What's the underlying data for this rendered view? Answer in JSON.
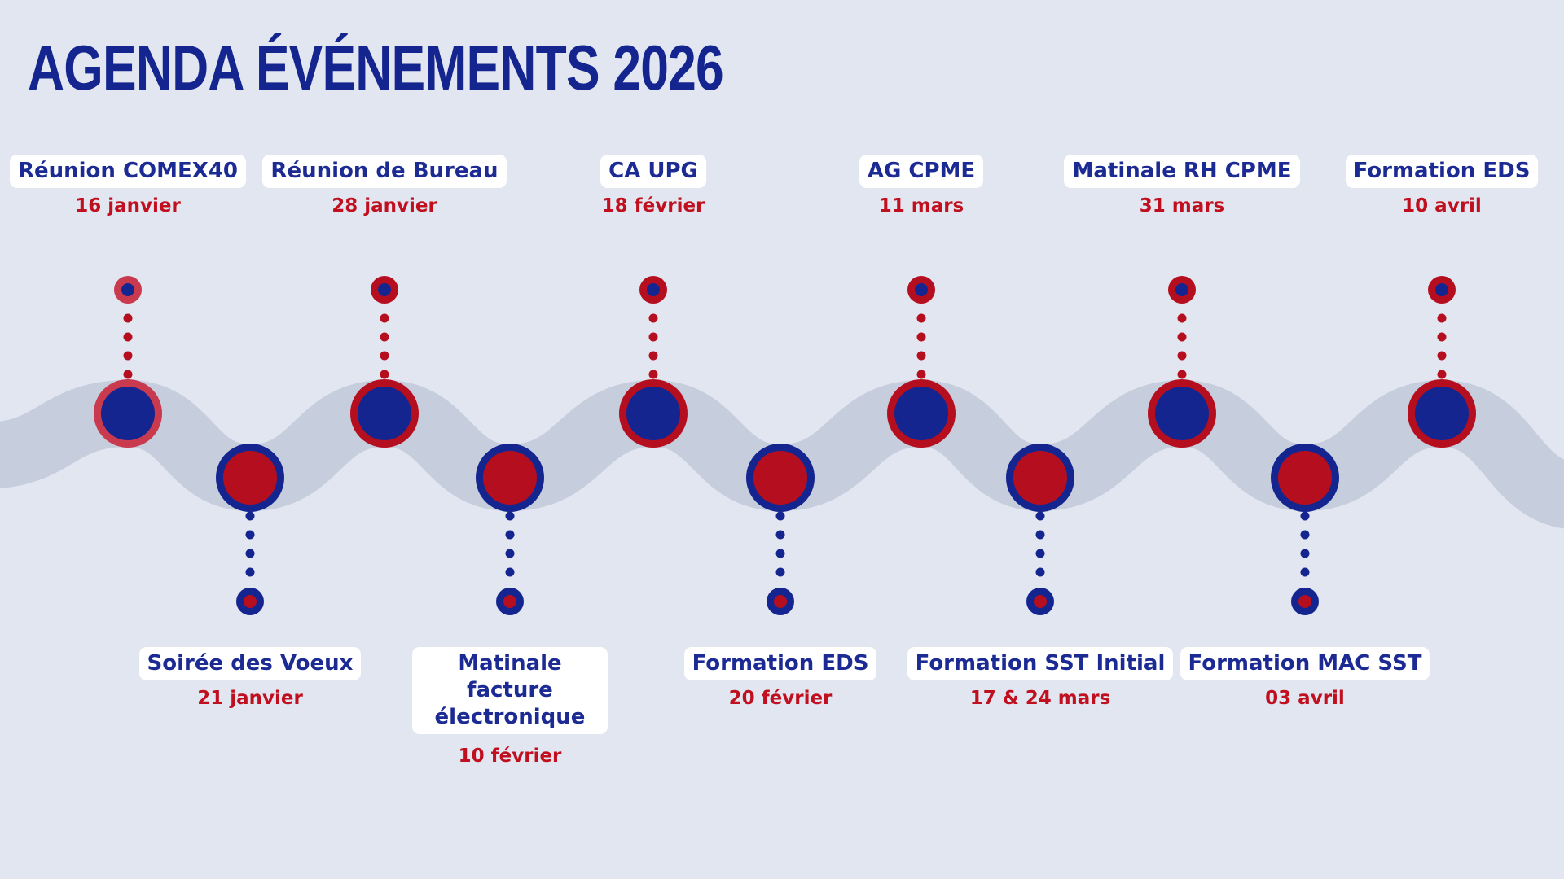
{
  "title": "AGENDA ÉVÉNEMENTS 2026",
  "colors": {
    "navy": "#15258f",
    "red": "#b50f1f",
    "band": "#c6cddd",
    "background": "#e2e6f0"
  },
  "events": [
    {
      "label": "Réunion COMEX40",
      "date": "16 janvier"
    },
    {
      "label": "Soirée des Voeux",
      "date": "21 janvier"
    },
    {
      "label": "Réunion de Bureau",
      "date": "28 janvier"
    },
    {
      "label": "Matinale facture électronique",
      "date": "10 février"
    },
    {
      "label": "CA UPG",
      "date": "18 février"
    },
    {
      "label": "Formation EDS",
      "date": "20 février"
    },
    {
      "label": "AG CPME",
      "date": "11 mars"
    },
    {
      "label": "Formation SST Initial",
      "date": "17 & 24 mars"
    },
    {
      "label": "Matinale RH CPME",
      "date": "31 mars"
    },
    {
      "label": "Formation MAC SST",
      "date": "03 avril"
    },
    {
      "label": "Formation EDS",
      "date": "10 avril"
    }
  ]
}
